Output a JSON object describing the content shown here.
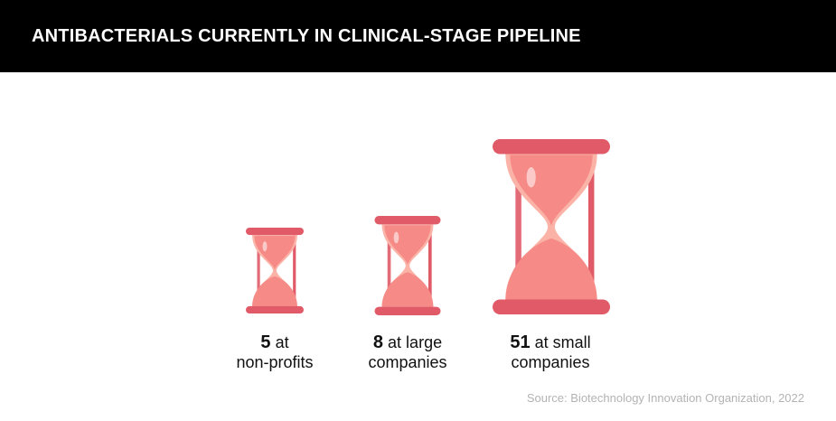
{
  "header": {
    "title": "ANTIBACTERIALS CURRENTLY IN CLINICAL-STAGE PIPELINE"
  },
  "chart_data": {
    "type": "pictograph",
    "title": "ANTIBACTERIALS CURRENTLY IN CLINICAL-STAGE PIPELINE",
    "icon": "hourglass-icon",
    "colors": {
      "frame": "#e05a68",
      "sand": "#f58a86",
      "glass": "#fbb3a8"
    },
    "items": [
      {
        "value": 5,
        "text_a": "at",
        "text_b": "non-profits"
      },
      {
        "value": 8,
        "text_a": "at large",
        "text_b": "companies"
      },
      {
        "value": 51,
        "text_a": "at small",
        "text_b": "companies"
      }
    ],
    "source": "Source: Biotechnology Innovation Organization, 2022"
  }
}
